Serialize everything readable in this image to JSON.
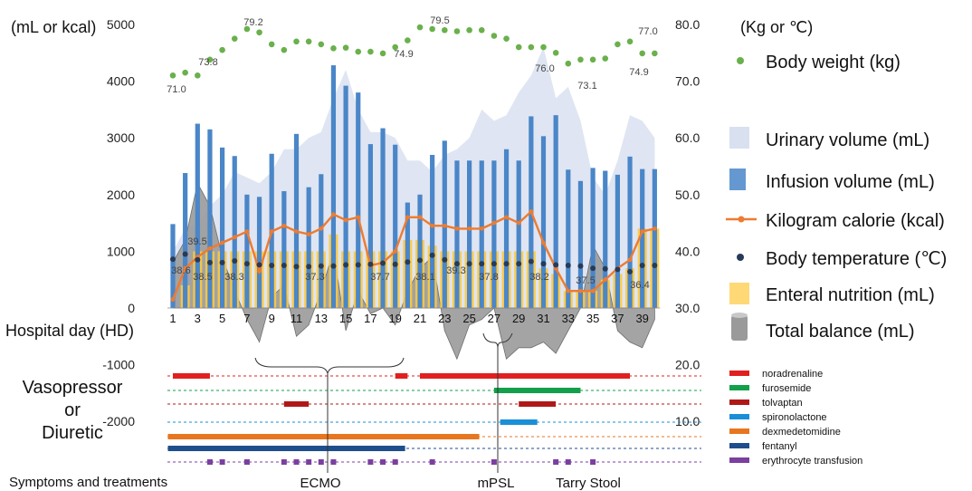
{
  "chart_data": {
    "type": "bar",
    "left_axis_label": "(mL or kcal)",
    "right_axis_label": "(Kg or ℃)",
    "left_ticks": [
      5000,
      4000,
      3000,
      2000,
      1000,
      0,
      -1000,
      -2000
    ],
    "right_ticks": [
      "80.0",
      "70.0",
      "60.0",
      "50.0",
      "40.0",
      "30.0",
      "20.0",
      "10.0"
    ],
    "xlabel": "Hospital day (HD)",
    "x_ticks": [
      1,
      3,
      5,
      7,
      9,
      11,
      13,
      15,
      17,
      19,
      21,
      23,
      25,
      27,
      29,
      31,
      33,
      35,
      37,
      39
    ],
    "days": [
      1,
      2,
      3,
      4,
      5,
      6,
      7,
      8,
      9,
      10,
      11,
      12,
      13,
      14,
      15,
      16,
      17,
      18,
      19,
      20,
      21,
      22,
      23,
      24,
      25,
      26,
      27,
      28,
      29,
      30,
      31,
      32,
      33,
      34,
      35,
      36,
      37,
      38,
      39,
      40
    ],
    "series": [
      {
        "name": "Infusion volume (mL)",
        "color": "#4a86c8",
        "values": [
          1480,
          2380,
          3250,
          3150,
          2830,
          2680,
          2000,
          1960,
          2720,
          2060,
          3070,
          2130,
          2360,
          4280,
          3920,
          3800,
          2890,
          3170,
          2880,
          1860,
          2000,
          2700,
          2950,
          2600,
          2600,
          2600,
          2600,
          2800,
          2600,
          3380,
          3030,
          3400,
          2440,
          2240,
          2470,
          2420,
          2350,
          2670,
          2450,
          2450
        ]
      },
      {
        "name": "Enteral nutrition (mL)",
        "color": "#ffc93c",
        "values": [
          0,
          400,
          1000,
          1000,
          1000,
          1000,
          1000,
          1000,
          1000,
          1000,
          1000,
          1000,
          1000,
          1300,
          1000,
          1000,
          1000,
          1000,
          1000,
          1200,
          1200,
          1100,
          1000,
          1000,
          1000,
          1000,
          1000,
          1000,
          1000,
          1000,
          700,
          600,
          300,
          300,
          300,
          500,
          600,
          700,
          1400,
          1400
        ]
      },
      {
        "name": "Urinary volume (mL)",
        "color": "#d9e0f0",
        "values": [
          1000,
          1400,
          1500,
          1800,
          2000,
          2400,
          2300,
          2200,
          2400,
          2800,
          2800,
          3000,
          3100,
          3700,
          4200,
          3500,
          3100,
          3100,
          3000,
          2600,
          2600,
          2400,
          2700,
          2800,
          3000,
          3500,
          3300,
          3400,
          3800,
          4100,
          4600,
          3700,
          3900,
          3300,
          2300,
          2000,
          2600,
          3400,
          3300,
          3000
        ]
      },
      {
        "name": "Total balance (mL)",
        "color": "#9a9a9a",
        "values": [
          800,
          1200,
          2200,
          1800,
          900,
          300,
          -200,
          -600,
          200,
          400,
          -500,
          -300,
          300,
          1000,
          -400,
          300,
          -100,
          0,
          -300,
          300,
          700,
          900,
          -400,
          -900,
          -300,
          -200,
          0,
          -900,
          -700,
          -700,
          -600,
          -800,
          -400,
          0,
          1100,
          700,
          -400,
          -600,
          -700,
          -200
        ]
      },
      {
        "name": "Kilogram calorie (kcal)",
        "color": "#ee7b30",
        "values": [
          150,
          700,
          900,
          1050,
          1150,
          1250,
          1350,
          650,
          1350,
          1450,
          1350,
          1300,
          1400,
          1650,
          1550,
          1600,
          750,
          800,
          1000,
          1600,
          1600,
          1450,
          1450,
          1400,
          1400,
          1400,
          1500,
          1600,
          1500,
          1700,
          1150,
          700,
          300,
          300,
          300,
          500,
          700,
          850,
          1350,
          1400
        ]
      },
      {
        "name": "Body temperature (℃)",
        "color": "#263b59",
        "values": [
          38.6,
          39.5,
          38.5,
          38.0,
          38.0,
          38.3,
          37.8,
          37.6,
          37.5,
          37.5,
          37.3,
          37.3,
          37.4,
          37.4,
          37.6,
          37.6,
          37.7,
          37.9,
          37.7,
          38.1,
          38.4,
          39.3,
          38.5,
          37.8,
          37.8,
          37.8,
          37.8,
          37.8,
          37.8,
          38.2,
          37.8,
          37.6,
          37.5,
          37.4,
          37.0,
          36.9,
          36.8,
          36.4,
          37.5,
          37.5
        ]
      },
      {
        "name": "Body weight (kg)",
        "color": "#6ab04c",
        "values": [
          71.0,
          71.5,
          71.0,
          73.8,
          75.5,
          77.5,
          79.2,
          78.6,
          76.5,
          75.5,
          77.0,
          77.0,
          76.5,
          75.8,
          75.9,
          75.2,
          75.2,
          74.9,
          76.0,
          77.2,
          79.5,
          79.2,
          79.0,
          78.8,
          79.0,
          79.0,
          78.0,
          77.5,
          76.0,
          76.0,
          76.0,
          75.0,
          73.1,
          73.8,
          73.8,
          74.0,
          76.5,
          77.0,
          74.9,
          74.9
        ]
      }
    ],
    "data_labels": {
      "body_weight": [
        "71.0",
        "73.8",
        "79.2",
        "74.9",
        "79.5",
        "76.0",
        "73.1",
        "77.0",
        "74.9"
      ],
      "body_temperature": [
        "38.6",
        "39.5",
        "38.5",
        "38.3",
        "37.3",
        "37.7",
        "38.1",
        "39.3",
        "37.8",
        "38.2",
        "37.5",
        "36.4"
      ]
    },
    "ylim_left": [
      -2000,
      5000
    ],
    "ylim_right": [
      10,
      80
    ],
    "grid": false,
    "legend_placement": "right",
    "legend": [
      "Body weight (kg)",
      "Urinary volume (mL)",
      "Infusion volume (mL)",
      "Kilogram calorie (kcal)",
      "Body temperature (℃)",
      "Enteral nutrition (mL)",
      "Total balance (mL)"
    ],
    "drugs_section": {
      "label_lines": [
        "Vasopressor",
        "or",
        "Diuretic"
      ],
      "drugs": [
        {
          "name": "noradrenaline",
          "color": "#e02020",
          "periods": [
            [
              1,
              4
            ],
            [
              19,
              20
            ],
            [
              21,
              38
            ]
          ]
        },
        {
          "name": "furosemide",
          "color": "#12a04a",
          "periods": [
            [
              27,
              34
            ]
          ]
        },
        {
          "name": "tolvaptan",
          "color": "#b01818",
          "periods": [
            [
              10,
              12
            ],
            [
              29,
              32
            ]
          ]
        },
        {
          "name": "spironolactone",
          "color": "#1a8fd8",
          "periods": [
            [
              27.5,
              30.5
            ]
          ]
        },
        {
          "name": "dexmedetomidine",
          "color": "#e8761e",
          "periods": [
            [
              0.6,
              25.8
            ]
          ]
        },
        {
          "name": "fentanyl",
          "color": "#1f4e8c",
          "periods": [
            [
              0.6,
              19.8
            ]
          ]
        },
        {
          "name": "erythrocyte transfusion",
          "color": "#7b3fa0",
          "days": [
            4,
            5,
            7,
            10,
            11,
            12,
            13,
            14,
            17,
            18,
            19,
            22,
            27,
            32,
            33,
            35
          ]
        }
      ]
    },
    "symptoms": {
      "label": "Symptoms and treatments",
      "items": [
        "ECMO",
        "mPSL",
        "Tarry Stool"
      ]
    }
  }
}
